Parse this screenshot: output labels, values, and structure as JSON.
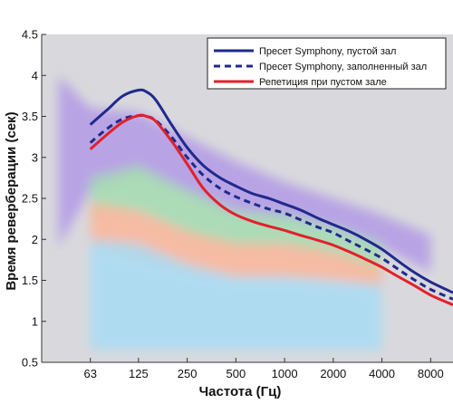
{
  "chart_data": {
    "type": "line",
    "title": "",
    "xlabel": "Частота (Гц)",
    "ylabel": "Время реверберации (сек)",
    "x_scale": "log2",
    "xlim": [
      31.5,
      11000
    ],
    "ylim": [
      0.5,
      4.5
    ],
    "x_ticks": [
      63,
      125,
      250,
      500,
      1000,
      2000,
      4000,
      8000
    ],
    "x_tick_labels": [
      "63",
      "125",
      "250",
      "500",
      "1000",
      "2000",
      "4000",
      "8000"
    ],
    "y_ticks": [
      0.5,
      1,
      1.5,
      2,
      2.5,
      3,
      3.5,
      4,
      4.5
    ],
    "y_tick_labels": [
      "0.5",
      "1",
      "1.5",
      "2",
      "2.5",
      "3",
      "3.5",
      "4",
      "4.5"
    ],
    "grid": false,
    "legend_position": "top-right",
    "background_color": "#d9d9dd",
    "series": [
      {
        "name": "Пресет Symphony, пустой зал",
        "color": "#1f2a8c",
        "style": "solid",
        "x": [
          63,
          80,
          100,
          125,
          140,
          160,
          200,
          250,
          315,
          400,
          500,
          630,
          800,
          1000,
          1250,
          1600,
          2000,
          2500,
          3150,
          4000,
          5000,
          6300,
          8000,
          11000
        ],
        "y": [
          3.4,
          3.58,
          3.75,
          3.82,
          3.8,
          3.7,
          3.4,
          3.12,
          2.9,
          2.75,
          2.65,
          2.56,
          2.5,
          2.43,
          2.36,
          2.26,
          2.18,
          2.1,
          2.0,
          1.88,
          1.74,
          1.6,
          1.48,
          1.35
        ]
      },
      {
        "name": "Пресет Symphony, заполненный зал",
        "color": "#1f2a8c",
        "style": "dashed",
        "x": [
          63,
          80,
          100,
          125,
          140,
          160,
          200,
          250,
          315,
          400,
          500,
          630,
          800,
          1000,
          1250,
          1600,
          2000,
          2500,
          3150,
          4000,
          5000,
          6300,
          8000,
          11000
        ],
        "y": [
          3.18,
          3.35,
          3.47,
          3.51,
          3.5,
          3.45,
          3.25,
          3.0,
          2.78,
          2.62,
          2.52,
          2.44,
          2.37,
          2.32,
          2.24,
          2.15,
          2.08,
          1.98,
          1.88,
          1.77,
          1.64,
          1.51,
          1.39,
          1.27
        ]
      },
      {
        "name": "Репетиция при пустом зале",
        "color": "#e3202a",
        "style": "solid",
        "x": [
          63,
          80,
          100,
          125,
          140,
          160,
          200,
          250,
          315,
          400,
          500,
          630,
          800,
          1000,
          1250,
          1600,
          2000,
          2500,
          3150,
          4000,
          5000,
          6300,
          8000,
          11000
        ],
        "y": [
          3.1,
          3.28,
          3.43,
          3.51,
          3.5,
          3.44,
          3.2,
          2.92,
          2.62,
          2.42,
          2.3,
          2.22,
          2.16,
          2.11,
          2.05,
          1.99,
          1.93,
          1.85,
          1.76,
          1.66,
          1.55,
          1.44,
          1.32,
          1.2
        ]
      }
    ],
    "bands": [
      {
        "color": "#b39ae6",
        "x": [
          40,
          63,
          125,
          250,
          500,
          1000,
          2000,
          4000,
          8000
        ],
        "lower": [
          1.9,
          2.6,
          2.8,
          2.55,
          2.3,
          2.25,
          2.15,
          1.9,
          1.6
        ],
        "upper": [
          4.0,
          3.6,
          3.55,
          3.25,
          2.95,
          2.7,
          2.5,
          2.3,
          2.05
        ]
      },
      {
        "color": "#a5dcb0",
        "x": [
          63,
          125,
          250,
          500,
          1000,
          2000,
          4000
        ],
        "lower": [
          2.25,
          2.35,
          2.05,
          1.9,
          1.9,
          1.8,
          1.55
        ],
        "upper": [
          2.75,
          2.9,
          2.6,
          2.35,
          2.3,
          2.15,
          1.95
        ]
      },
      {
        "color": "#fbb69a",
        "x": [
          63,
          125,
          250,
          500,
          1000,
          2000,
          4000
        ],
        "lower": [
          1.9,
          1.75,
          1.6,
          1.5,
          1.5,
          1.5,
          1.4
        ],
        "upper": [
          2.45,
          2.35,
          2.1,
          1.95,
          1.95,
          1.85,
          1.65
        ]
      },
      {
        "color": "#a8dcf4",
        "x": [
          63,
          125,
          250,
          500,
          1000,
          2000,
          4000
        ],
        "lower": [
          0.65,
          0.65,
          0.65,
          0.65,
          0.65,
          0.65,
          0.65
        ],
        "upper": [
          2.0,
          1.95,
          1.7,
          1.55,
          1.55,
          1.5,
          1.45
        ]
      }
    ]
  }
}
